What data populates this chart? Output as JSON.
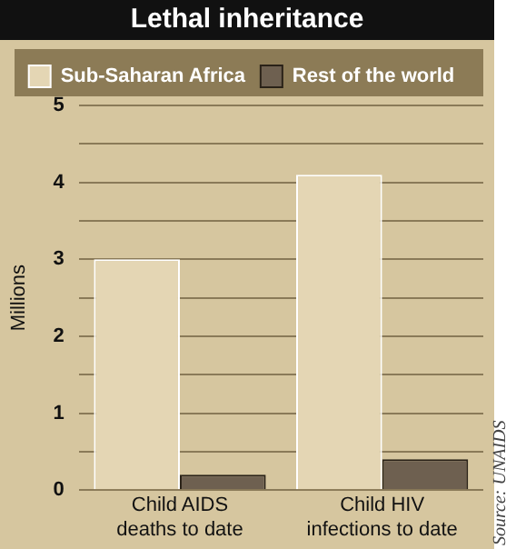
{
  "chart_data": {
    "type": "bar",
    "title": "Lethal inheritance",
    "ylabel": "Millions",
    "categories": [
      [
        "Child AIDS",
        "deaths to date"
      ],
      [
        "Child HIV",
        "infections to date"
      ]
    ],
    "series": [
      {
        "name": "Sub-Saharan Africa",
        "color": "#e4d6b4",
        "values": [
          3.0,
          4.1
        ]
      },
      {
        "name": "Rest of the world",
        "color": "#6e6050",
        "values": [
          0.2,
          0.4
        ]
      }
    ],
    "ylim": [
      0,
      5
    ],
    "yticks": [
      0,
      {
        "value": 0.5,
        "label": null
      },
      1,
      {
        "value": 1.5,
        "label": null
      },
      2,
      {
        "value": 2.5,
        "label": null
      },
      3,
      {
        "value": 3.5,
        "label": null
      },
      4,
      {
        "value": 4.5,
        "label": null
      },
      5
    ],
    "grid": "y",
    "legend": "top",
    "annotations": [
      "Source: UNAIDS"
    ]
  }
}
